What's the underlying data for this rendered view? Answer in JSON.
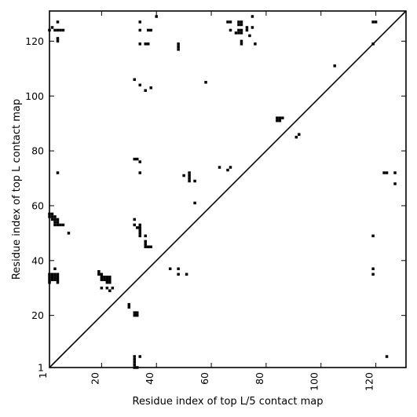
{
  "chart_data": {
    "type": "scatter",
    "xlabel": "Residue index of top L/5 contact map",
    "ylabel": "Residue index of top L contact map",
    "xlim": [
      1,
      131
    ],
    "ylim": [
      1,
      131
    ],
    "xticks": [
      1,
      20,
      40,
      60,
      80,
      100,
      120
    ],
    "yticks": [
      1,
      20,
      40,
      60,
      80,
      100,
      120
    ],
    "grid": false,
    "diagonal_line": true,
    "marker_color": "#000000",
    "points": [
      [
        1,
        124
      ],
      [
        2,
        125
      ],
      [
        3,
        124
      ],
      [
        4,
        124
      ],
      [
        5,
        124
      ],
      [
        6,
        124
      ],
      [
        4,
        127
      ],
      [
        4,
        121
      ],
      [
        4,
        120
      ],
      [
        4,
        72
      ],
      [
        1,
        57
      ],
      [
        1,
        56
      ],
      [
        2,
        57
      ],
      [
        2,
        56
      ],
      [
        2,
        55
      ],
      [
        3,
        56
      ],
      [
        3,
        55
      ],
      [
        3,
        54
      ],
      [
        3,
        53
      ],
      [
        4,
        55
      ],
      [
        4,
        54
      ],
      [
        4,
        53
      ],
      [
        5,
        53
      ],
      [
        6,
        53
      ],
      [
        8,
        50
      ],
      [
        1,
        35
      ],
      [
        1,
        34
      ],
      [
        1,
        33
      ],
      [
        1,
        32
      ],
      [
        2,
        35
      ],
      [
        2,
        34
      ],
      [
        2,
        33
      ],
      [
        3,
        35
      ],
      [
        3,
        34
      ],
      [
        3,
        33
      ],
      [
        3,
        37
      ],
      [
        4,
        35
      ],
      [
        4,
        34
      ],
      [
        4,
        33
      ],
      [
        4,
        32
      ],
      [
        19,
        36
      ],
      [
        19,
        35
      ],
      [
        20,
        35
      ],
      [
        20,
        34
      ],
      [
        20,
        33
      ],
      [
        21,
        34
      ],
      [
        21,
        33
      ],
      [
        22,
        34
      ],
      [
        22,
        33
      ],
      [
        22,
        32
      ],
      [
        23,
        34
      ],
      [
        23,
        33
      ],
      [
        23,
        32
      ],
      [
        20,
        30
      ],
      [
        22,
        30
      ],
      [
        23,
        29
      ],
      [
        24,
        30
      ],
      [
        30,
        24
      ],
      [
        30,
        23
      ],
      [
        32,
        21
      ],
      [
        32,
        20
      ],
      [
        33,
        20
      ],
      [
        33,
        21
      ],
      [
        32,
        5
      ],
      [
        32,
        4
      ],
      [
        32,
        3
      ],
      [
        32,
        2
      ],
      [
        32,
        1
      ],
      [
        33,
        1
      ],
      [
        34,
        5
      ],
      [
        32,
        106
      ],
      [
        34,
        104
      ],
      [
        36,
        102
      ],
      [
        38,
        103
      ],
      [
        32,
        77
      ],
      [
        33,
        77
      ],
      [
        34,
        76
      ],
      [
        34,
        72
      ],
      [
        32,
        55
      ],
      [
        32,
        53
      ],
      [
        33,
        52
      ],
      [
        34,
        53
      ],
      [
        34,
        52
      ],
      [
        34,
        51
      ],
      [
        34,
        50
      ],
      [
        34,
        49
      ],
      [
        36,
        49
      ],
      [
        36,
        47
      ],
      [
        36,
        46
      ],
      [
        36,
        45
      ],
      [
        37,
        45
      ],
      [
        38,
        45
      ],
      [
        34,
        127
      ],
      [
        34,
        124
      ],
      [
        34,
        119
      ],
      [
        36,
        119
      ],
      [
        37,
        119
      ],
      [
        37,
        124
      ],
      [
        38,
        124
      ],
      [
        40,
        129
      ],
      [
        45,
        37
      ],
      [
        48,
        37
      ],
      [
        48,
        35
      ],
      [
        51,
        35
      ],
      [
        48,
        119
      ],
      [
        48,
        118
      ],
      [
        48,
        117
      ],
      [
        50,
        71
      ],
      [
        52,
        72
      ],
      [
        52,
        71
      ],
      [
        52,
        70
      ],
      [
        52,
        69
      ],
      [
        54,
        69
      ],
      [
        54,
        61
      ],
      [
        58,
        105
      ],
      [
        63,
        74
      ],
      [
        66,
        73
      ],
      [
        67,
        74
      ],
      [
        66,
        127
      ],
      [
        67,
        127
      ],
      [
        67,
        124
      ],
      [
        70,
        127
      ],
      [
        70,
        126
      ],
      [
        71,
        127
      ],
      [
        71,
        126
      ],
      [
        69,
        123
      ],
      [
        70,
        123
      ],
      [
        71,
        123
      ],
      [
        70,
        124
      ],
      [
        71,
        124
      ],
      [
        71,
        120
      ],
      [
        71,
        119
      ],
      [
        73,
        125
      ],
      [
        73,
        124
      ],
      [
        74,
        122
      ],
      [
        75,
        125
      ],
      [
        75,
        129
      ],
      [
        76,
        119
      ],
      [
        84,
        92
      ],
      [
        84,
        91
      ],
      [
        85,
        92
      ],
      [
        85,
        91
      ],
      [
        86,
        92
      ],
      [
        91,
        85
      ],
      [
        92,
        86
      ],
      [
        105,
        111
      ],
      [
        119,
        127
      ],
      [
        120,
        127
      ],
      [
        119,
        119
      ],
      [
        119,
        49
      ],
      [
        119,
        37
      ],
      [
        119,
        35
      ],
      [
        123,
        72
      ],
      [
        124,
        72
      ],
      [
        127,
        72
      ],
      [
        127,
        68
      ],
      [
        124,
        5
      ]
    ]
  }
}
